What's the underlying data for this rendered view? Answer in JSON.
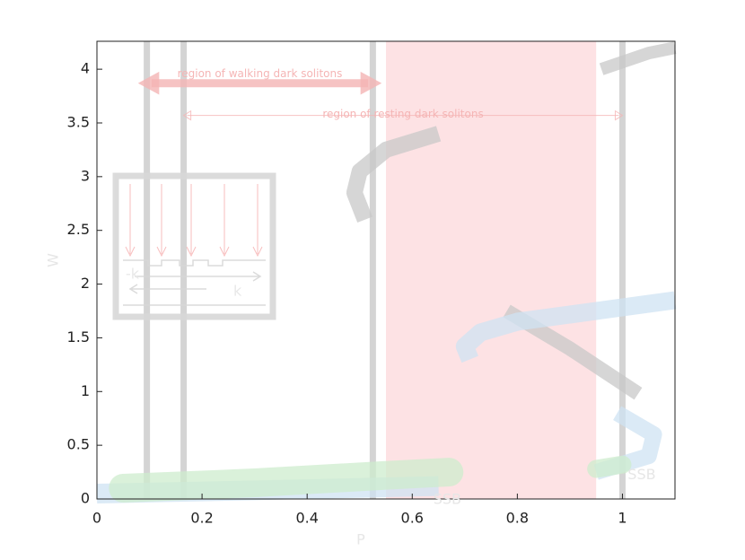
{
  "chart_data": {
    "type": "line",
    "xlabel": "P",
    "ylabel": "W",
    "xlim": [
      0,
      1.1
    ],
    "ylim": [
      0,
      4.26
    ],
    "xticks": [
      0,
      0.2,
      0.4,
      0.6,
      0.8,
      1
    ],
    "yticks": [
      0,
      0.5,
      1,
      1.5,
      2,
      2.5,
      3,
      3.5,
      4
    ],
    "shaded_region": {
      "x": [
        0.55,
        0.95
      ],
      "color": "#fde2e4"
    },
    "vlines": {
      "x": [
        0.095,
        0.165,
        0.525,
        1.0
      ],
      "color": "#d4d4d4"
    },
    "series": [
      {
        "color": "#c8c8c8",
        "x": [
          0.51,
          0.49,
          0.5,
          0.55,
          0.65
        ],
        "values": [
          2.6,
          2.85,
          3.05,
          3.25,
          3.4
        ]
      },
      {
        "color": "#c8c8c8",
        "x": [
          0.96,
          1.05,
          1.1
        ],
        "values": [
          4.0,
          4.15,
          4.2
        ]
      },
      {
        "color": "#c8c8c8",
        "x": [
          0.78,
          0.9,
          1.03
        ],
        "values": [
          1.75,
          1.4,
          0.98
        ]
      },
      {
        "color": "#cfe3f3",
        "x": [
          0.71,
          0.7,
          0.73,
          0.8,
          0.95,
          1.1
        ],
        "values": [
          1.3,
          1.42,
          1.55,
          1.65,
          1.75,
          1.85
        ]
      },
      {
        "color": "#cfe3f3",
        "x": [
          0.99,
          1.06,
          1.05,
          0.95
        ],
        "values": [
          0.8,
          0.6,
          0.4,
          0.25
        ]
      },
      {
        "color": "#cfe3f3",
        "x": [
          0,
          0.3,
          0.65
        ],
        "values": [
          0.05,
          0.08,
          0.12
        ]
      },
      {
        "color": "#cdeccd",
        "x": [
          0.05,
          0.3,
          0.55,
          0.67
        ],
        "values": [
          0.1,
          0.15,
          0.22,
          0.25
        ]
      },
      {
        "color": "#cdeccd",
        "x": [
          0.95,
          1.0
        ],
        "values": [
          0.28,
          0.32
        ]
      }
    ],
    "annotations": [
      {
        "text": "region of walking dark solitons",
        "x": [
          0.08,
          0.54
        ],
        "y": 3.87,
        "color": "#f5b5b5"
      },
      {
        "text": "region of resting dark solitons",
        "x": [
          0.165,
          1.0
        ],
        "y": 3.57,
        "color": "#f5b5b5"
      }
    ],
    "labels": [
      {
        "text": "SSB",
        "x": 0.64,
        "y": -0.01
      },
      {
        "text": "SSB",
        "x": 1.01,
        "y": 0.22
      }
    ],
    "inset": {
      "labels": [
        "-k",
        "k"
      ]
    }
  }
}
